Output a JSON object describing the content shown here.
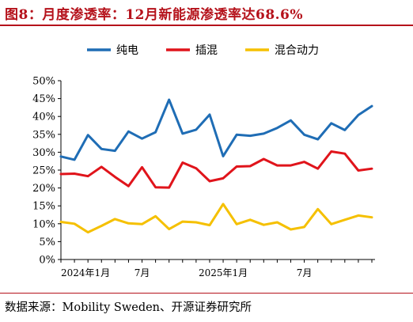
{
  "title": "图8：月度渗透率：12月新能源渗透率达68.6%",
  "source": "数据来源：Mobility Sweden、开源证券研究所",
  "chart_data": {
    "type": "line",
    "x": [
      "2024-01",
      "2024-02",
      "2024-03",
      "2024-04",
      "2024-05",
      "2024-06",
      "2024-07",
      "2024-08",
      "2024-09",
      "2024-10",
      "2024-11",
      "2024-12",
      "2025-01",
      "2025-02",
      "2025-03",
      "2025-04",
      "2025-05",
      "2025-06",
      "2025-07",
      "2025-08",
      "2025-09",
      "2025-10",
      "2025-11",
      "2025-12"
    ],
    "x_tick_labels": [
      {
        "index": 0,
        "label": "2024年1月"
      },
      {
        "index": 6,
        "label": "7月"
      },
      {
        "index": 12,
        "label": "2025年1月"
      },
      {
        "index": 18,
        "label": "7月"
      }
    ],
    "ylim": [
      0,
      50
    ],
    "yticks": [
      "0%",
      "5%",
      "10%",
      "15%",
      "20%",
      "25%",
      "30%",
      "35%",
      "40%",
      "45%",
      "50%"
    ],
    "legend_position": "top",
    "grid": false,
    "series": [
      {
        "name": "纯电",
        "color": "#1f6db5",
        "values": [
          28.8,
          27.9,
          34.8,
          30.9,
          30.4,
          35.8,
          33.8,
          35.6,
          44.7,
          35.2,
          36.3,
          40.5,
          28.9,
          34.9,
          34.6,
          35.2,
          36.8,
          38.9,
          34.9,
          33.6,
          38.1,
          36.2,
          40.4,
          42.9
        ]
      },
      {
        "name": "插混",
        "color": "#e0141b",
        "values": [
          23.9,
          24.0,
          23.3,
          25.9,
          23.1,
          20.5,
          25.8,
          20.2,
          20.1,
          27.1,
          25.5,
          21.9,
          22.7,
          26.0,
          26.1,
          28.1,
          26.3,
          26.3,
          27.3,
          25.4,
          30.2,
          29.6,
          24.9,
          25.4
        ]
      },
      {
        "name": "混合动力",
        "color": "#f5c000",
        "values": [
          10.5,
          10.0,
          7.6,
          9.4,
          11.3,
          10.1,
          9.9,
          12.1,
          8.5,
          10.6,
          10.4,
          9.6,
          15.5,
          9.9,
          11.1,
          9.7,
          10.4,
          8.4,
          9.1,
          14.1,
          9.9,
          11.1,
          12.3,
          11.8
        ]
      }
    ]
  }
}
